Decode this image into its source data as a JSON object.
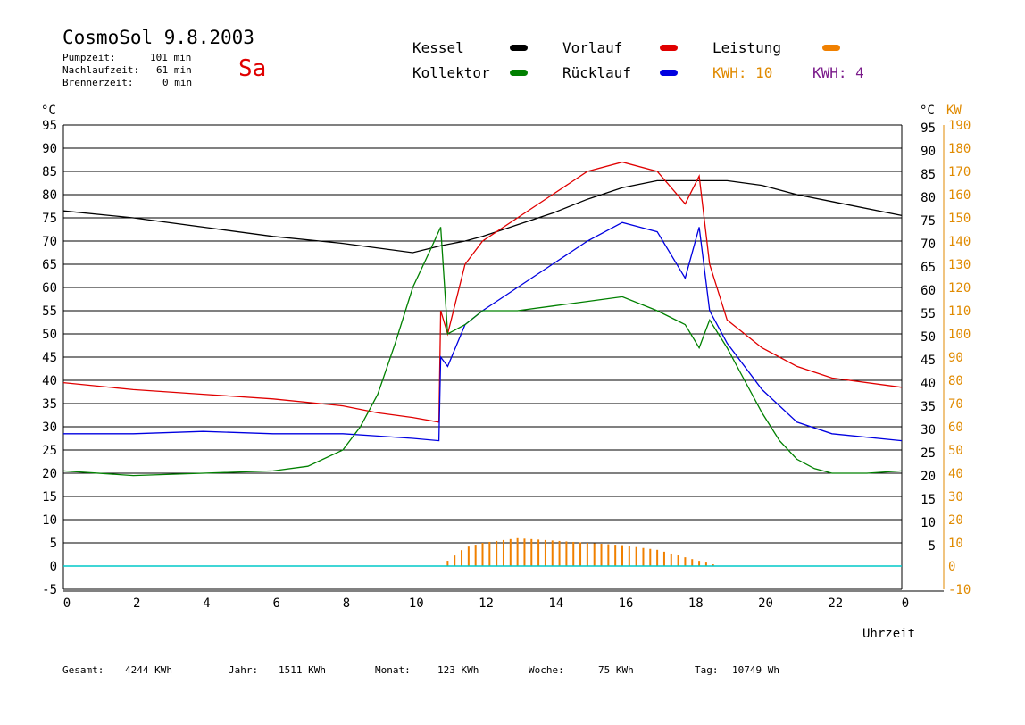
{
  "header": {
    "title": "CosmoSol 9.8.2003",
    "day": "Sa",
    "stats": [
      {
        "label": "Pumpzeit:",
        "value": "101 min"
      },
      {
        "label": "Nachlaufzeit:",
        "value": "61 min"
      },
      {
        "label": "Brennerzeit:",
        "value": "0 min"
      }
    ]
  },
  "legend": {
    "kessel": {
      "label": "Kessel",
      "color": "#000000"
    },
    "vorlauf": {
      "label": "Vorlauf",
      "color": "#e00000"
    },
    "leistung": {
      "label": "Leistung",
      "color": "#f08000"
    },
    "kollektor": {
      "label": "Kollektor",
      "color": "#008000"
    },
    "ruecklauf": {
      "label": "Rücklauf",
      "color": "#0000e0"
    },
    "kwh1": "KWH: 10",
    "kwh2": "KWH: 4"
  },
  "footer": {
    "gesamt": {
      "label": "Gesamt:",
      "value": "4244 KWh"
    },
    "jahr": {
      "label": "Jahr:",
      "value": "1511 KWh"
    },
    "monat": {
      "label": "Monat:",
      "value": "123 KWh"
    },
    "woche": {
      "label": "Woche:",
      "value": "75 KWh"
    },
    "tag": {
      "label": "Tag:",
      "value": "10749 Wh"
    }
  },
  "chart_data": {
    "type": "line",
    "title": "CosmoSol 9.8.2003",
    "xlabel": "Uhrzeit",
    "ylabel_left": "°C",
    "ylabel_right_1": "°C",
    "ylabel_right_2": "KW",
    "xlim": [
      0,
      24
    ],
    "ylim": [
      -5,
      95
    ],
    "y2lim": [
      -10,
      190
    ],
    "x_ticks": [
      "0",
      "2",
      "4",
      "6",
      "8",
      "10",
      "12",
      "14",
      "16",
      "18",
      "20",
      "22",
      "0"
    ],
    "y_ticks_left": [
      "95",
      "90",
      "85",
      "80",
      "75",
      "70",
      "65",
      "60",
      "55",
      "50",
      "45",
      "40",
      "35",
      "30",
      "25",
      "20",
      "15",
      "10",
      "5",
      "0",
      "-5"
    ],
    "y_ticks_right": [
      "95",
      "90",
      "85",
      "80",
      "75",
      "70",
      "65",
      "60",
      "55",
      "50",
      "45",
      "40",
      "35",
      "30",
      "25",
      "20",
      "15",
      "10",
      "5"
    ],
    "y2_ticks": [
      "190",
      "180",
      "170",
      "160",
      "150",
      "140",
      "130",
      "120",
      "110",
      "100",
      "90",
      "80",
      "70",
      "60",
      "50",
      "40",
      "30",
      "20",
      "10",
      "0",
      "-10"
    ],
    "grid": true,
    "series": [
      {
        "name": "Kessel",
        "color": "#000000",
        "x": [
          0,
          2,
          4,
          6,
          8,
          10,
          10.8,
          11.5,
          12,
          13,
          14,
          15,
          16,
          17,
          17.8,
          18.5,
          19,
          20,
          21,
          22,
          24
        ],
        "y": [
          76.5,
          75,
          73,
          71,
          69.5,
          67.5,
          69,
          70,
          71,
          73.5,
          76,
          79,
          81.5,
          83,
          83,
          83,
          83,
          82,
          80,
          78.5,
          75.5
        ]
      },
      {
        "name": "Vorlauf",
        "color": "#e00000",
        "x": [
          0,
          2,
          4,
          6,
          8,
          9,
          10,
          10.75,
          10.8,
          11,
          11.5,
          12,
          13,
          14,
          15,
          16,
          17,
          17.8,
          18.2,
          18.5,
          19,
          20,
          21,
          22,
          24
        ],
        "y": [
          39.5,
          38,
          37,
          36,
          34.5,
          33,
          32,
          31,
          55,
          50,
          65,
          70,
          75,
          80,
          85,
          87,
          85,
          78,
          84,
          65,
          53,
          47,
          43,
          40.5,
          38.5
        ]
      },
      {
        "name": "Rücklauf",
        "color": "#0000e0",
        "x": [
          0,
          2,
          4,
          6,
          8,
          9,
          10,
          10.75,
          10.8,
          11,
          11.5,
          12,
          13,
          14,
          15,
          16,
          17,
          17.8,
          18.2,
          18.5,
          19,
          20,
          21,
          22,
          24
        ],
        "y": [
          28.5,
          28.5,
          29,
          28.5,
          28.5,
          28,
          27.5,
          27,
          45,
          43,
          52,
          55,
          60,
          65,
          70,
          74,
          72,
          62,
          73,
          55,
          48,
          38,
          31,
          28.5,
          27
        ]
      },
      {
        "name": "Kollektor",
        "color": "#008000",
        "x": [
          0,
          2,
          4,
          6,
          7,
          8,
          8.5,
          9,
          9.5,
          10,
          10.5,
          10.8,
          11,
          11.5,
          12,
          13,
          14,
          15,
          16,
          17,
          17.8,
          18.2,
          18.5,
          19,
          19.5,
          20,
          20.5,
          21,
          21.5,
          22,
          23,
          24
        ],
        "y": [
          20.5,
          19.5,
          20,
          20.5,
          21.5,
          25,
          30,
          37,
          48,
          60,
          68,
          73,
          50,
          52,
          55,
          55,
          56,
          57,
          58,
          55,
          52,
          47,
          53,
          47,
          40,
          33,
          27,
          23,
          21,
          20,
          20,
          20.5
        ]
      },
      {
        "name": "Leistung",
        "color": "#f08000",
        "axis": "y2",
        "x": [
          0,
          10.8,
          11.5,
          12,
          13,
          14,
          15,
          16,
          17,
          18,
          18.8,
          24
        ],
        "y": [
          0,
          0,
          8,
          10,
          12,
          11,
          10,
          9,
          7,
          3,
          0,
          0
        ]
      }
    ]
  }
}
